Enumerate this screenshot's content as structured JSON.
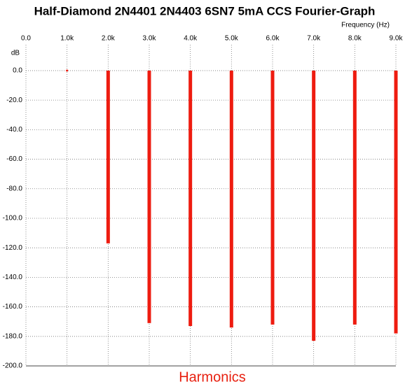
{
  "chart_data": {
    "type": "stem",
    "title": "Half-Diamond 2N4401 2N4403 6SN7 5mA CCS Fourier-Graph",
    "x_label": "Frequency (Hz)",
    "y_label": "dB",
    "caption": "Harmonics",
    "color": "#ee1c10",
    "grid": true,
    "x": [
      1000,
      2000,
      3000,
      4000,
      5000,
      6000,
      7000,
      8000,
      9000
    ],
    "values": [
      0,
      -117,
      -171,
      -173,
      -174,
      -172,
      -183,
      -172,
      -178
    ],
    "xlim": [
      0,
      9000
    ],
    "xticks": [
      {
        "value": 0,
        "label": "0.0"
      },
      {
        "value": 1000,
        "label": "1.0k"
      },
      {
        "value": 2000,
        "label": "2.0k"
      },
      {
        "value": 3000,
        "label": "3.0k"
      },
      {
        "value": 4000,
        "label": "4.0k"
      },
      {
        "value": 5000,
        "label": "5.0k"
      },
      {
        "value": 6000,
        "label": "6.0k"
      },
      {
        "value": 7000,
        "label": "7.0k"
      },
      {
        "value": 8000,
        "label": "8.0k"
      },
      {
        "value": 9000,
        "label": "9.0k"
      }
    ],
    "ylim": [
      -200,
      17.5
    ],
    "yticks": [
      {
        "value": 0,
        "label": "0.0"
      },
      {
        "value": -20,
        "label": "-20.0"
      },
      {
        "value": -40,
        "label": "-40.0"
      },
      {
        "value": -60,
        "label": "-60.0"
      },
      {
        "value": -80,
        "label": "-80.0"
      },
      {
        "value": -100,
        "label": "-100.0"
      },
      {
        "value": -120,
        "label": "-120.0"
      },
      {
        "value": -140,
        "label": "-140.0"
      },
      {
        "value": -160,
        "label": "-160.0"
      },
      {
        "value": -180,
        "label": "-180.0"
      },
      {
        "value": -200,
        "label": "-200.0"
      }
    ]
  }
}
